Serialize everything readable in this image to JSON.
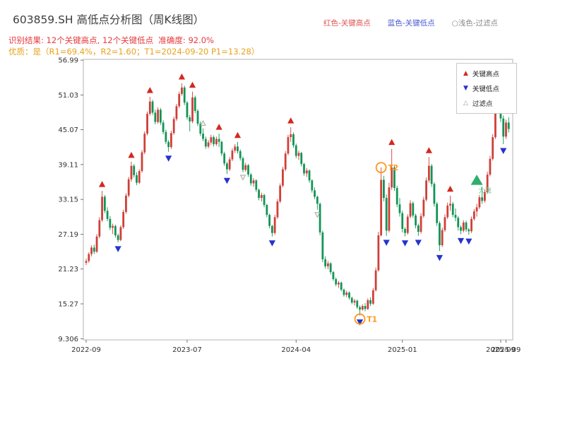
{
  "header": {
    "title": "603859.SH 高低点分析图（周K线图）",
    "result_line": "识别结果: 12个关键高点, 12个关键低点  准确度: 92.0%",
    "quality_line": "优质：是（R1=69.4%，R2=1.60；T1=2024-09-20 P1=13.28）"
  },
  "top_legend": {
    "high_label": "红色-关键高点",
    "low_label": "蓝色-关键低点",
    "filter_label": "○浅色-过滤点"
  },
  "plot_legend": {
    "items": [
      {
        "label": "关键高点",
        "marker": "red-up-triangle"
      },
      {
        "label": "关键低点",
        "marker": "blue-down-triangle"
      },
      {
        "label": "过滤点",
        "marker": "light-up-triangle"
      }
    ]
  },
  "icons": {
    "key_high": "▲",
    "key_low": "▼",
    "filtered": "△"
  },
  "colors": {
    "candle_up": "#cf3f38",
    "candle_down": "#129455",
    "marker_high": "#d3281e",
    "marker_low": "#2633cc",
    "filtered_fill": "#f4f1e8",
    "filtered_stroke": "#999999",
    "accent_orange": "#ff9518",
    "big_rise": "#2fae6e",
    "big_rise_text": "#6cc794",
    "header_red": "#e6393d",
    "header_orange": "#e8a21c",
    "title_gray": "#3d3d3d",
    "legend_red": "#dd5555",
    "legend_blue": "#4a5ad0",
    "legend_gray": "#8a8a8a",
    "frame": "#b3b3b3"
  },
  "chart_data": {
    "type": "candlestick",
    "title": "603859.SH 高低点分析图（周K线图）",
    "symbol": "603859.SH",
    "timeframe": "周K线 (weekly)",
    "ylim": [
      9.1,
      57.12
    ],
    "y_ticks": [
      {
        "label": "56.99",
        "value": 56.99
      },
      {
        "label": "51.03",
        "value": 51.03
      },
      {
        "label": "45.07",
        "value": 45.07
      },
      {
        "label": "39.11",
        "value": 39.11
      },
      {
        "label": "33.15",
        "value": 33.15
      },
      {
        "label": "27.19",
        "value": 27.19
      },
      {
        "label": "21.23",
        "value": 21.23
      },
      {
        "label": "15.27",
        "value": 15.27
      },
      {
        "label": "9.306",
        "value": 9.306
      }
    ],
    "x_ticks": [
      {
        "label": "2022-09",
        "i": 0
      },
      {
        "label": "2023-07",
        "i": 38
      },
      {
        "label": "2024-04",
        "i": 79
      },
      {
        "label": "2025-01",
        "i": 119
      },
      {
        "label": "2025-09",
        "i": 156
      },
      {
        "label": "2025-09",
        "i": 158
      }
    ],
    "candles_format": "[open, high, low, close]",
    "candles": [
      [
        22.3,
        23.0,
        21.9,
        22.6
      ],
      [
        22.6,
        24.1,
        22.3,
        23.8
      ],
      [
        23.8,
        25.3,
        23.4,
        24.9
      ],
      [
        24.9,
        25.4,
        23.8,
        24.2
      ],
      [
        24.2,
        27.2,
        24.0,
        26.8
      ],
      [
        26.8,
        30.1,
        26.5,
        29.6
      ],
      [
        29.6,
        34.6,
        29.3,
        33.6
      ],
      [
        33.6,
        33.9,
        30.8,
        31.2
      ],
      [
        31.2,
        31.8,
        29.4,
        29.8
      ],
      [
        29.8,
        30.3,
        27.9,
        28.3
      ],
      [
        28.3,
        29.0,
        27.2,
        28.6
      ],
      [
        28.6,
        28.8,
        26.6,
        27.0
      ],
      [
        27.0,
        27.3,
        25.8,
        26.2
      ],
      [
        26.2,
        28.7,
        26.0,
        28.4
      ],
      [
        28.4,
        31.4,
        28.1,
        31.0
      ],
      [
        31.0,
        34.2,
        30.7,
        33.8
      ],
      [
        33.8,
        37.0,
        33.5,
        36.6
      ],
      [
        36.6,
        39.6,
        36.2,
        38.9
      ],
      [
        38.9,
        39.2,
        36.9,
        37.3
      ],
      [
        37.3,
        37.8,
        35.6,
        36.0
      ],
      [
        36.0,
        38.3,
        35.8,
        38.0
      ],
      [
        38.0,
        41.6,
        37.7,
        41.2
      ],
      [
        41.2,
        44.8,
        40.9,
        44.4
      ],
      [
        44.4,
        48.2,
        44.1,
        47.8
      ],
      [
        47.8,
        50.7,
        47.5,
        49.9
      ],
      [
        49.9,
        50.2,
        47.6,
        48.0
      ],
      [
        48.0,
        48.5,
        46.0,
        46.4
      ],
      [
        46.4,
        48.9,
        46.1,
        48.5
      ],
      [
        48.5,
        48.8,
        45.9,
        46.3
      ],
      [
        46.3,
        46.7,
        44.3,
        44.7
      ],
      [
        44.7,
        45.1,
        42.6,
        43.0
      ],
      [
        43.0,
        43.3,
        41.3,
        42.1
      ],
      [
        42.1,
        44.9,
        41.8,
        44.5
      ],
      [
        44.5,
        47.3,
        44.2,
        46.9
      ],
      [
        46.9,
        49.5,
        46.6,
        49.1
      ],
      [
        49.1,
        51.6,
        48.8,
        51.2
      ],
      [
        51.2,
        53.0,
        50.9,
        52.3
      ],
      [
        52.3,
        52.6,
        49.3,
        49.7
      ],
      [
        49.7,
        50.0,
        46.8,
        47.2
      ],
      [
        47.2,
        47.6,
        44.8,
        46.5
      ],
      [
        46.5,
        51.6,
        46.2,
        50.6
      ],
      [
        50.6,
        50.9,
        47.9,
        48.3
      ],
      [
        48.3,
        48.6,
        45.7,
        46.1
      ],
      [
        46.1,
        46.5,
        44.0,
        44.4
      ],
      [
        44.4,
        45.3,
        43.1,
        43.5
      ],
      [
        43.5,
        43.9,
        41.8,
        42.2
      ],
      [
        42.2,
        43.3,
        41.9,
        42.9
      ],
      [
        42.9,
        44.2,
        42.5,
        43.8
      ],
      [
        43.8,
        44.1,
        42.2,
        42.6
      ],
      [
        42.6,
        43.9,
        42.3,
        43.5
      ],
      [
        43.5,
        44.4,
        42.1,
        43.0
      ],
      [
        43.0,
        43.2,
        40.6,
        41.0
      ],
      [
        41.0,
        41.3,
        38.9,
        39.3
      ],
      [
        39.3,
        39.6,
        37.5,
        38.3
      ],
      [
        38.3,
        40.4,
        38.0,
        40.0
      ],
      [
        40.0,
        41.9,
        39.7,
        41.5
      ],
      [
        41.5,
        42.6,
        41.1,
        42.2
      ],
      [
        42.2,
        43.0,
        41.0,
        41.4
      ],
      [
        41.4,
        41.7,
        39.8,
        40.2
      ],
      [
        40.2,
        40.5,
        37.8,
        38.2
      ],
      [
        38.2,
        39.4,
        37.9,
        39.0
      ],
      [
        39.0,
        39.2,
        37.0,
        37.4
      ],
      [
        37.4,
        37.7,
        35.5,
        35.9
      ],
      [
        35.9,
        36.8,
        35.3,
        36.4
      ],
      [
        36.4,
        36.6,
        34.4,
        34.8
      ],
      [
        34.8,
        35.0,
        33.0,
        33.4
      ],
      [
        33.4,
        34.3,
        32.8,
        33.9
      ],
      [
        33.9,
        34.1,
        31.8,
        32.2
      ],
      [
        32.2,
        32.4,
        30.1,
        30.5
      ],
      [
        30.5,
        30.7,
        28.2,
        28.6
      ],
      [
        28.6,
        28.8,
        26.8,
        27.4
      ],
      [
        27.4,
        30.5,
        27.1,
        30.1
      ],
      [
        30.1,
        33.2,
        29.8,
        32.8
      ],
      [
        32.8,
        35.9,
        32.5,
        35.5
      ],
      [
        35.5,
        38.7,
        35.2,
        38.3
      ],
      [
        38.3,
        41.4,
        38.0,
        41.0
      ],
      [
        41.0,
        44.2,
        40.7,
        43.8
      ],
      [
        43.8,
        45.5,
        43.0,
        44.3
      ],
      [
        44.3,
        44.6,
        42.0,
        42.4
      ],
      [
        42.4,
        42.7,
        40.2,
        40.6
      ],
      [
        40.6,
        41.5,
        39.9,
        41.1
      ],
      [
        41.1,
        41.3,
        38.8,
        39.2
      ],
      [
        39.2,
        39.4,
        37.2,
        37.6
      ],
      [
        37.6,
        38.5,
        37.0,
        38.1
      ],
      [
        38.1,
        38.3,
        36.0,
        36.4
      ],
      [
        36.4,
        36.6,
        34.3,
        34.7
      ],
      [
        34.7,
        35.2,
        33.2,
        33.6
      ],
      [
        33.6,
        33.8,
        31.4,
        32.4
      ],
      [
        32.4,
        32.6,
        27.0,
        27.5
      ],
      [
        27.5,
        27.8,
        22.4,
        22.9
      ],
      [
        22.9,
        23.4,
        21.3,
        21.7
      ],
      [
        21.7,
        22.6,
        21.2,
        22.2
      ],
      [
        22.2,
        22.4,
        20.3,
        20.7
      ],
      [
        20.7,
        20.9,
        19.2,
        19.5
      ],
      [
        19.5,
        19.8,
        18.3,
        18.6
      ],
      [
        18.6,
        19.2,
        18.0,
        18.9
      ],
      [
        18.9,
        19.1,
        17.4,
        17.7
      ],
      [
        17.7,
        17.9,
        16.5,
        16.8
      ],
      [
        16.8,
        17.5,
        16.4,
        17.2
      ],
      [
        17.2,
        17.4,
        16.0,
        16.3
      ],
      [
        16.3,
        16.5,
        15.2,
        15.5
      ],
      [
        15.5,
        16.1,
        15.0,
        15.8
      ],
      [
        15.8,
        16.0,
        14.4,
        14.7
      ],
      [
        14.7,
        15.0,
        13.28,
        14.3
      ],
      [
        14.3,
        15.2,
        14.1,
        14.9
      ],
      [
        14.9,
        15.4,
        14.0,
        14.4
      ],
      [
        14.4,
        16.2,
        14.2,
        15.9
      ],
      [
        15.9,
        16.4,
        14.9,
        15.3
      ],
      [
        15.3,
        18.0,
        15.1,
        17.6
      ],
      [
        17.6,
        21.5,
        17.4,
        21.0
      ],
      [
        21.0,
        27.6,
        20.8,
        27.0
      ],
      [
        27.0,
        38.6,
        26.8,
        36.5
      ],
      [
        36.5,
        37.2,
        32.8,
        33.4
      ],
      [
        33.4,
        34.0,
        26.9,
        27.8
      ],
      [
        27.8,
        36.0,
        27.5,
        35.2
      ],
      [
        35.2,
        41.8,
        34.8,
        38.6
      ],
      [
        38.6,
        39.0,
        34.6,
        35.1
      ],
      [
        35.1,
        35.5,
        31.8,
        32.3
      ],
      [
        32.3,
        33.4,
        30.2,
        30.8
      ],
      [
        30.8,
        31.2,
        27.5,
        28.1
      ],
      [
        28.1,
        28.4,
        26.8,
        27.4
      ],
      [
        27.4,
        30.6,
        27.1,
        30.2
      ],
      [
        30.2,
        33.0,
        29.9,
        32.5
      ],
      [
        32.5,
        32.8,
        30.0,
        30.4
      ],
      [
        30.4,
        30.7,
        28.2,
        28.7
      ],
      [
        28.7,
        29.0,
        26.9,
        27.6
      ],
      [
        27.6,
        30.8,
        27.3,
        30.3
      ],
      [
        30.3,
        33.6,
        30.0,
        33.1
      ],
      [
        33.1,
        36.9,
        32.8,
        36.4
      ],
      [
        36.4,
        40.4,
        36.0,
        38.9
      ],
      [
        38.9,
        39.2,
        35.3,
        35.8
      ],
      [
        35.8,
        36.1,
        31.9,
        32.4
      ],
      [
        32.4,
        32.7,
        28.6,
        29.1
      ],
      [
        29.1,
        29.4,
        24.3,
        25.3
      ],
      [
        25.3,
        28.3,
        25.0,
        27.9
      ],
      [
        27.9,
        30.6,
        27.6,
        30.1
      ],
      [
        30.1,
        32.6,
        29.8,
        32.1
      ],
      [
        32.1,
        33.8,
        31.2,
        32.4
      ],
      [
        32.4,
        32.7,
        30.1,
        30.5
      ],
      [
        30.5,
        31.6,
        29.4,
        30.0
      ],
      [
        30.0,
        30.3,
        27.8,
        28.4
      ],
      [
        28.4,
        28.7,
        27.2,
        27.8
      ],
      [
        27.8,
        29.6,
        27.5,
        29.2
      ],
      [
        29.2,
        29.5,
        27.6,
        28.0
      ],
      [
        28.0,
        28.3,
        27.1,
        27.7
      ],
      [
        27.7,
        30.2,
        27.4,
        29.8
      ],
      [
        29.8,
        31.5,
        29.5,
        31.1
      ],
      [
        31.1,
        32.4,
        30.2,
        31.8
      ],
      [
        31.8,
        33.9,
        31.5,
        33.5
      ],
      [
        33.5,
        35.3,
        32.4,
        32.9
      ],
      [
        32.9,
        34.8,
        32.6,
        34.4
      ],
      [
        34.4,
        37.9,
        34.1,
        37.4
      ],
      [
        37.4,
        40.6,
        37.1,
        40.1
      ],
      [
        40.1,
        44.3,
        39.8,
        43.8
      ],
      [
        43.8,
        48.6,
        43.5,
        48.1
      ],
      [
        48.1,
        53.6,
        47.8,
        50.9
      ],
      [
        50.9,
        51.3,
        46.4,
        47.0
      ],
      [
        47.0,
        47.5,
        42.6,
        43.9
      ],
      [
        43.9,
        46.8,
        43.5,
        46.3
      ],
      [
        46.3,
        47.2,
        44.6,
        45.2
      ]
    ],
    "key_highs": [
      {
        "i": 6,
        "price": 34.6
      },
      {
        "i": 17,
        "price": 39.6
      },
      {
        "i": 24,
        "price": 50.7
      },
      {
        "i": 36,
        "price": 53.0
      },
      {
        "i": 40,
        "price": 51.6
      },
      {
        "i": 50,
        "price": 44.4
      },
      {
        "i": 57,
        "price": 43.0
      },
      {
        "i": 77,
        "price": 45.5
      },
      {
        "i": 115,
        "price": 41.8
      },
      {
        "i": 129,
        "price": 40.4
      },
      {
        "i": 137,
        "price": 33.8
      },
      {
        "i": 155,
        "price": 53.6
      }
    ],
    "key_lows": [
      {
        "i": 12,
        "price": 25.8
      },
      {
        "i": 31,
        "price": 41.3
      },
      {
        "i": 53,
        "price": 37.5
      },
      {
        "i": 70,
        "price": 26.8
      },
      {
        "i": 103,
        "price": 13.28
      },
      {
        "i": 113,
        "price": 26.9
      },
      {
        "i": 120,
        "price": 26.8
      },
      {
        "i": 125,
        "price": 26.9
      },
      {
        "i": 133,
        "price": 24.3
      },
      {
        "i": 141,
        "price": 27.2
      },
      {
        "i": 144,
        "price": 27.1
      },
      {
        "i": 157,
        "price": 42.6
      }
    ],
    "filtered_points": [
      {
        "i": 44,
        "price": 45.3,
        "dir": "up"
      },
      {
        "i": 59,
        "price": 37.8,
        "dir": "down"
      },
      {
        "i": 87,
        "price": 31.4,
        "dir": "down"
      }
    ],
    "t_points": [
      {
        "label": "T1",
        "i": 103,
        "price": 13.28
      },
      {
        "label": "T2",
        "i": 111,
        "price": 38.6
      }
    ],
    "big_rise": {
      "label": "大涨",
      "i": 147,
      "price": 36.3
    },
    "stats": {
      "key_high_count": 12,
      "key_low_count": 12,
      "accuracy": "92.0%",
      "R1": "69.4%",
      "R2": "1.60",
      "T1_date": "2024-09-20",
      "P1": "13.28"
    }
  }
}
